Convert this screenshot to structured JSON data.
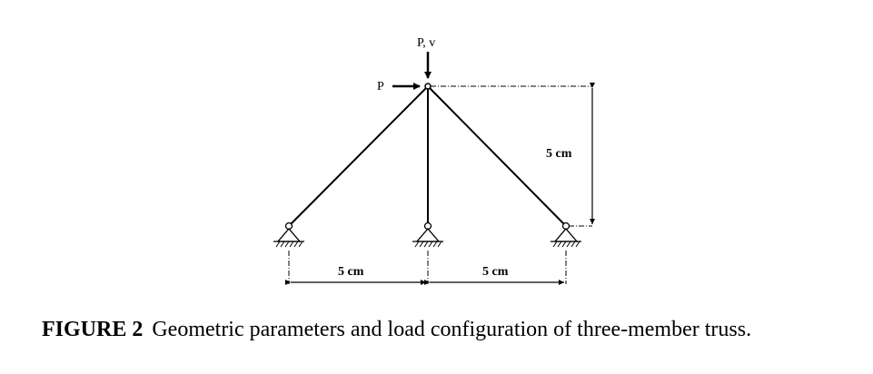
{
  "diagram": {
    "loads": {
      "horizontal_label": "P",
      "vertical_label": "P, v"
    },
    "dimensions": {
      "height_label": "5 cm",
      "left_span_label": "5 cm",
      "right_span_label": "5 cm"
    }
  },
  "caption": {
    "number": "FIGURE 2",
    "text": "Geometric parameters and load configuration of three-member truss."
  }
}
